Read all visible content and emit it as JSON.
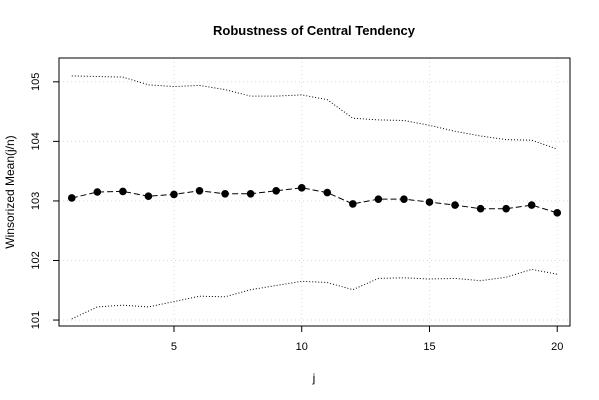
{
  "chart_data": {
    "type": "line",
    "title": "Robustness of Central Tendency",
    "xlabel": "j",
    "ylabel": "Winsorized Mean(j/n)",
    "xlim": [
      0.5,
      20.5
    ],
    "ylim": [
      100.9,
      105.4
    ],
    "xticks": [
      5,
      10,
      15,
      20
    ],
    "yticks": [
      101,
      102,
      103,
      104,
      105
    ],
    "grid": true,
    "series": [
      {
        "style": "points-dashed",
        "x": [
          1,
          2,
          3,
          4,
          5,
          6,
          7,
          8,
          9,
          10,
          11,
          12,
          13,
          14,
          15,
          16,
          17,
          18,
          19,
          20
        ],
        "values": [
          103.05,
          103.15,
          103.16,
          103.08,
          103.11,
          103.17,
          103.12,
          103.12,
          103.17,
          103.22,
          103.14,
          102.95,
          103.03,
          103.03,
          102.98,
          102.93,
          102.87,
          102.87,
          102.93,
          102.8
        ]
      },
      {
        "style": "dotted",
        "x": [
          1,
          2,
          3,
          4,
          5,
          6,
          7,
          8,
          9,
          10,
          11,
          12,
          13,
          14,
          15,
          16,
          17,
          18,
          19,
          20
        ],
        "values": [
          105.1,
          105.09,
          105.08,
          104.95,
          104.92,
          104.94,
          104.87,
          104.76,
          104.76,
          104.78,
          104.7,
          104.39,
          104.36,
          104.35,
          104.27,
          104.17,
          104.09,
          104.03,
          104.02,
          103.87
        ]
      },
      {
        "style": "dotted",
        "x": [
          1,
          2,
          3,
          4,
          5,
          6,
          7,
          8,
          9,
          10,
          11,
          12,
          13,
          14,
          15,
          16,
          17,
          18,
          19,
          20
        ],
        "values": [
          101.02,
          101.22,
          101.25,
          101.22,
          101.31,
          101.4,
          101.39,
          101.51,
          101.58,
          101.65,
          101.63,
          101.51,
          101.7,
          101.71,
          101.69,
          101.7,
          101.66,
          101.72,
          101.85,
          101.77
        ]
      }
    ]
  }
}
